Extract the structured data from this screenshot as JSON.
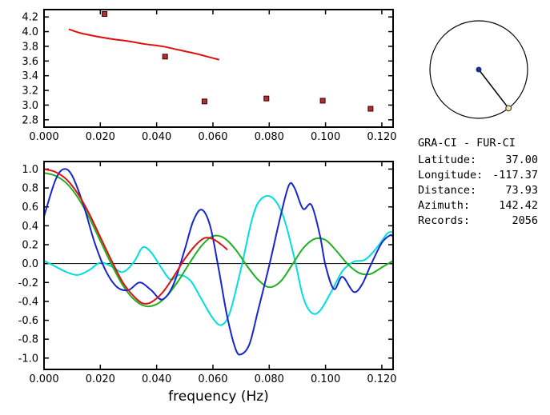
{
  "page": {
    "background": "#ffffff"
  },
  "info_panel": {
    "title": "GRA-CI - FUR-CI",
    "rows": [
      {
        "label": "Latitude:",
        "value": "37.00"
      },
      {
        "label": "Longitude:",
        "value": "-117.37"
      },
      {
        "label": "Distance:",
        "value": "73.93"
      },
      {
        "label": "Azimuth:",
        "value": "142.42"
      },
      {
        "label": "Records:",
        "value": "2056"
      }
    ]
  },
  "azimuth_indicator": {
    "azimuth_deg": 142.42,
    "circle_color": "#000000",
    "center_dot_color": "#1a2e8c",
    "end_marker_fill": "#efe6a0",
    "end_marker_stroke": "#444444"
  },
  "chart_data": [
    {
      "id": "dispersion",
      "type": "line",
      "title": "",
      "xlabel": "",
      "ylabel": "",
      "xlim": [
        0,
        0.124
      ],
      "ylim": [
        2.7,
        4.3
      ],
      "grid": false,
      "zero_line": false,
      "xtick_values": [
        0,
        0.02,
        0.04,
        0.06,
        0.08,
        0.1,
        0.12
      ],
      "xtick_labels": [
        "0.000",
        "0.020",
        "0.040",
        "0.060",
        "0.080",
        "0.100",
        "0.120"
      ],
      "ytick_values": [
        2.8,
        3.0,
        3.2,
        3.4,
        3.6,
        3.8,
        4.0,
        4.2
      ],
      "ytick_labels": [
        "2.8",
        "3.0",
        "3.2",
        "3.4",
        "3.6",
        "3.8",
        "4.0",
        "4.2"
      ],
      "series": [
        {
          "name": "phase-velocity-curve",
          "style": "line",
          "color": "#dd1111",
          "width": 2,
          "points": [
            [
              0.009,
              4.03
            ],
            [
              0.013,
              3.98
            ],
            [
              0.018,
              3.94
            ],
            [
              0.024,
              3.9
            ],
            [
              0.03,
              3.87
            ],
            [
              0.036,
              3.83
            ],
            [
              0.042,
              3.8
            ],
            [
              0.048,
              3.75
            ],
            [
              0.054,
              3.7
            ],
            [
              0.058,
              3.66
            ],
            [
              0.062,
              3.62
            ]
          ]
        },
        {
          "name": "phase-velocity-picks",
          "style": "markers",
          "color": "#b03030",
          "stroke": "#400000",
          "size": 6,
          "points": [
            [
              0.0215,
              4.24
            ],
            [
              0.043,
              3.66
            ],
            [
              0.057,
              3.05
            ],
            [
              0.079,
              3.09
            ],
            [
              0.099,
              3.06
            ],
            [
              0.116,
              2.95
            ]
          ]
        }
      ]
    },
    {
      "id": "crossspec",
      "type": "line",
      "title": "",
      "xlabel": "frequency (Hz)",
      "ylabel": "",
      "xlim": [
        0,
        0.124
      ],
      "ylim": [
        -1.12,
        1.08
      ],
      "grid": false,
      "zero_line": true,
      "xtick_values": [
        0,
        0.02,
        0.04,
        0.06,
        0.08,
        0.1,
        0.12
      ],
      "xtick_labels": [
        "0.000",
        "0.020",
        "0.040",
        "0.060",
        "0.080",
        "0.100",
        "0.120"
      ],
      "ytick_values": [
        -1.0,
        -0.8,
        -0.6,
        -0.4,
        -0.2,
        0.0,
        0.2,
        0.4,
        0.6,
        0.8,
        1.0
      ],
      "ytick_labels": [
        "-1.0",
        "-0.8",
        "-0.6",
        "-0.4",
        "-0.2",
        "0.0",
        "0.2",
        "0.4",
        "0.6",
        "0.8",
        "1.0"
      ],
      "series": [
        {
          "name": "cross-spectrum-cyan",
          "style": "line",
          "color": "#00dede",
          "width": 2,
          "points": [
            [
              0.0,
              0.03
            ],
            [
              0.004,
              -0.03
            ],
            [
              0.008,
              -0.09
            ],
            [
              0.012,
              -0.12
            ],
            [
              0.016,
              -0.07
            ],
            [
              0.02,
              0.01
            ],
            [
              0.024,
              -0.03
            ],
            [
              0.028,
              -0.09
            ],
            [
              0.032,
              0.02
            ],
            [
              0.035,
              0.17
            ],
            [
              0.038,
              0.12
            ],
            [
              0.042,
              -0.06
            ],
            [
              0.045,
              -0.17
            ],
            [
              0.048,
              -0.12
            ],
            [
              0.052,
              -0.18
            ],
            [
              0.056,
              -0.38
            ],
            [
              0.06,
              -0.58
            ],
            [
              0.063,
              -0.65
            ],
            [
              0.066,
              -0.52
            ],
            [
              0.07,
              -0.05
            ],
            [
              0.074,
              0.48
            ],
            [
              0.077,
              0.68
            ],
            [
              0.081,
              0.7
            ],
            [
              0.085,
              0.5
            ],
            [
              0.089,
              0.05
            ],
            [
              0.092,
              -0.35
            ],
            [
              0.095,
              -0.52
            ],
            [
              0.098,
              -0.5
            ],
            [
              0.102,
              -0.3
            ],
            [
              0.106,
              -0.08
            ],
            [
              0.11,
              0.02
            ],
            [
              0.114,
              0.04
            ],
            [
              0.118,
              0.16
            ],
            [
              0.122,
              0.32
            ],
            [
              0.124,
              0.33
            ]
          ]
        },
        {
          "name": "cross-spectrum-green",
          "style": "line",
          "color": "#22b022",
          "width": 2,
          "points": [
            [
              0.0,
              0.96
            ],
            [
              0.004,
              0.93
            ],
            [
              0.008,
              0.85
            ],
            [
              0.012,
              0.7
            ],
            [
              0.016,
              0.49
            ],
            [
              0.02,
              0.24
            ],
            [
              0.024,
              -0.01
            ],
            [
              0.028,
              -0.23
            ],
            [
              0.032,
              -0.38
            ],
            [
              0.036,
              -0.45
            ],
            [
              0.04,
              -0.43
            ],
            [
              0.044,
              -0.33
            ],
            [
              0.048,
              -0.17
            ],
            [
              0.052,
              0.02
            ],
            [
              0.056,
              0.19
            ],
            [
              0.06,
              0.29
            ],
            [
              0.064,
              0.27
            ],
            [
              0.068,
              0.15
            ],
            [
              0.072,
              -0.02
            ],
            [
              0.076,
              -0.17
            ],
            [
              0.08,
              -0.25
            ],
            [
              0.084,
              -0.19
            ],
            [
              0.088,
              -0.02
            ],
            [
              0.092,
              0.16
            ],
            [
              0.096,
              0.26
            ],
            [
              0.1,
              0.25
            ],
            [
              0.104,
              0.13
            ],
            [
              0.108,
              -0.01
            ],
            [
              0.112,
              -0.1
            ],
            [
              0.116,
              -0.11
            ],
            [
              0.12,
              -0.04
            ],
            [
              0.124,
              0.03
            ]
          ]
        },
        {
          "name": "cross-spectrum-blue",
          "style": "line",
          "color": "#1726cc",
          "width": 2,
          "points": [
            [
              0.0,
              0.5
            ],
            [
              0.004,
              0.88
            ],
            [
              0.007,
              1.0
            ],
            [
              0.01,
              0.93
            ],
            [
              0.014,
              0.62
            ],
            [
              0.018,
              0.22
            ],
            [
              0.022,
              -0.08
            ],
            [
              0.026,
              -0.25
            ],
            [
              0.03,
              -0.28
            ],
            [
              0.034,
              -0.2
            ],
            [
              0.038,
              -0.28
            ],
            [
              0.042,
              -0.38
            ],
            [
              0.046,
              -0.22
            ],
            [
              0.05,
              0.15
            ],
            [
              0.053,
              0.45
            ],
            [
              0.056,
              0.57
            ],
            [
              0.059,
              0.4
            ],
            [
              0.062,
              -0.05
            ],
            [
              0.065,
              -0.55
            ],
            [
              0.068,
              -0.9
            ],
            [
              0.07,
              -0.96
            ],
            [
              0.073,
              -0.85
            ],
            [
              0.076,
              -0.5
            ],
            [
              0.08,
              -0.02
            ],
            [
              0.084,
              0.5
            ],
            [
              0.087,
              0.83
            ],
            [
              0.089,
              0.8
            ],
            [
              0.092,
              0.58
            ],
            [
              0.095,
              0.62
            ],
            [
              0.098,
              0.3
            ],
            [
              0.1,
              -0.02
            ],
            [
              0.103,
              -0.27
            ],
            [
              0.106,
              -0.14
            ],
            [
              0.11,
              -0.3
            ],
            [
              0.113,
              -0.22
            ],
            [
              0.116,
              -0.02
            ],
            [
              0.12,
              0.22
            ],
            [
              0.123,
              0.3
            ],
            [
              0.124,
              0.28
            ]
          ]
        },
        {
          "name": "cross-spectrum-red",
          "style": "line",
          "color": "#dd1111",
          "width": 2,
          "points": [
            [
              0.0,
              1.0
            ],
            [
              0.004,
              0.97
            ],
            [
              0.008,
              0.89
            ],
            [
              0.012,
              0.74
            ],
            [
              0.016,
              0.53
            ],
            [
              0.02,
              0.28
            ],
            [
              0.024,
              0.03
            ],
            [
              0.028,
              -0.2
            ],
            [
              0.032,
              -0.35
            ],
            [
              0.035,
              -0.42
            ],
            [
              0.038,
              -0.41
            ],
            [
              0.042,
              -0.31
            ],
            [
              0.046,
              -0.14
            ],
            [
              0.05,
              0.05
            ],
            [
              0.054,
              0.2
            ],
            [
              0.057,
              0.27
            ],
            [
              0.06,
              0.26
            ],
            [
              0.063,
              0.2
            ],
            [
              0.065,
              0.15
            ]
          ]
        }
      ]
    }
  ]
}
